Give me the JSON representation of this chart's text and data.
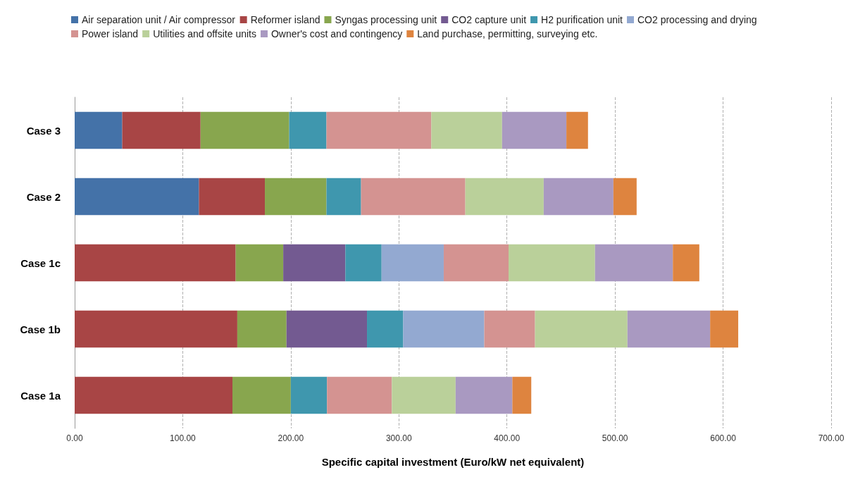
{
  "chart_data": {
    "type": "bar",
    "orientation": "horizontal",
    "stacked": true,
    "xlabel": "Specific capital investment (Euro/kW net equivalent)",
    "categories": [
      "Case 3",
      "Case 2",
      "Case 1c",
      "Case 1b",
      "Case 1a"
    ],
    "series": [
      {
        "name": "Air separation unit / Air compressor",
        "color": "#4472a8",
        "values": [
          44,
          115,
          null,
          null,
          null
        ]
      },
      {
        "name": "Reformer island",
        "color": "#a84545",
        "values": [
          72.5,
          61,
          149,
          150.5,
          146
        ]
      },
      {
        "name": "Syngas processing unit",
        "color": "#88a64e",
        "values": [
          82,
          57,
          44,
          45.5,
          54
        ]
      },
      {
        "name": "CO2 capture unit",
        "color": "#735a91",
        "values": [
          null,
          null,
          57.5,
          74.5,
          null
        ]
      },
      {
        "name": "H2 purification unit",
        "color": "#3f97ae",
        "values": [
          34.5,
          32,
          33.5,
          33.5,
          33.5
        ]
      },
      {
        "name": "CO2 processing and drying",
        "color": "#93a9d1",
        "values": [
          null,
          null,
          57.5,
          75,
          null
        ]
      },
      {
        "name": "Power island",
        "color": "#d49391",
        "values": [
          97,
          96.5,
          60,
          47,
          60
        ]
      },
      {
        "name": "Utilities and offsite units",
        "color": "#bad09a",
        "values": [
          65.5,
          72.5,
          80,
          85.5,
          59
        ]
      },
      {
        "name": "Owner's cost and contingency",
        "color": "#a999c1",
        "values": [
          59.5,
          64.5,
          72,
          76.5,
          52.5
        ]
      },
      {
        "name": "Land purchase, permitting, surveying etc.",
        "color": "#de843f",
        "values": [
          20,
          21.5,
          24.5,
          26,
          17.5
        ]
      }
    ],
    "xlim": [
      0,
      700
    ],
    "xticks": [
      {
        "value": 0,
        "label": "0.00"
      },
      {
        "value": 100,
        "label": "100.00"
      },
      {
        "value": 200,
        "label": "200.00"
      },
      {
        "value": 300,
        "label": "300.00"
      },
      {
        "value": 400,
        "label": "400.00"
      },
      {
        "value": 500,
        "label": "500.00"
      },
      {
        "value": 600,
        "label": "600.00"
      },
      {
        "value": 700,
        "label": "700.00"
      }
    ],
    "grid": "x",
    "legend": "top"
  }
}
